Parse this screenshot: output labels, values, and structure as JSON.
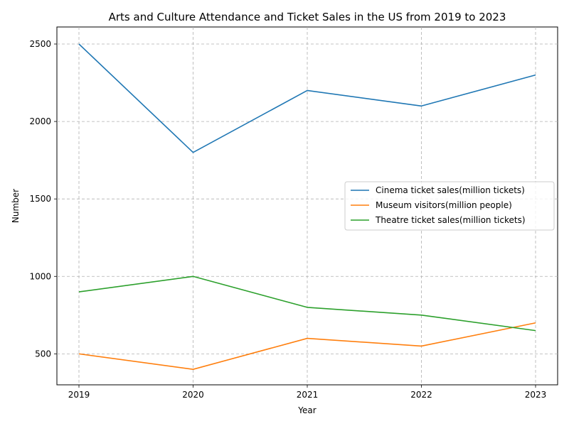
{
  "chart_data": {
    "type": "line",
    "title": "Arts and Culture Attendance and Ticket Sales in the US from 2019 to 2023",
    "xlabel": "Year",
    "ylabel": "Number",
    "x": [
      "2019",
      "2020",
      "2021",
      "2022",
      "2023"
    ],
    "yticks": [
      500,
      1000,
      1500,
      2000,
      2500
    ],
    "ylim": [
      300,
      2610
    ],
    "grid": true,
    "legend_position": "center-right",
    "series": [
      {
        "name": "Cinema ticket sales(million tickets)",
        "color": "#1f77b4",
        "values": [
          2500,
          1800,
          2200,
          2100,
          2300
        ]
      },
      {
        "name": "Museum visitors(million people)",
        "color": "#ff7f0e",
        "values": [
          500,
          400,
          600,
          550,
          700
        ]
      },
      {
        "name": "Theatre ticket sales(million tickets)",
        "color": "#2ca02c",
        "values": [
          900,
          1000,
          800,
          750,
          650
        ]
      }
    ]
  }
}
